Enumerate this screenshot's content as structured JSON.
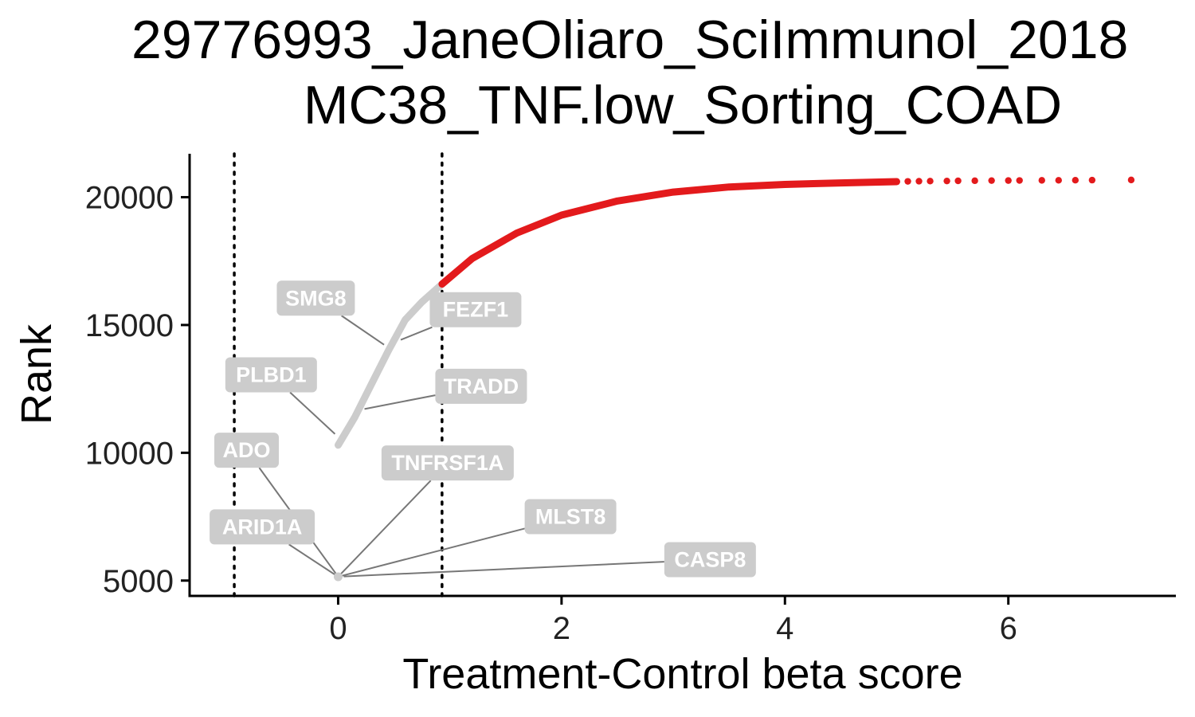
{
  "chart_data": {
    "type": "scatter",
    "title_line1": "29776993_JaneOliaro_SciImmunol_2018",
    "title_line2": "MC38_TNF.low_Sorting_COAD",
    "xlabel": "Treatment-Control beta score",
    "ylabel": "Rank",
    "xlim": [
      -1.33,
      7.5
    ],
    "ylim": [
      4400,
      21700
    ],
    "x_ticks": [
      0,
      2,
      4,
      6
    ],
    "y_ticks": [
      5000,
      10000,
      15000,
      20000
    ],
    "x_tick_labels": [
      "0",
      "2",
      "4",
      "6"
    ],
    "y_tick_labels": [
      "5000",
      "10000",
      "15000",
      "20000"
    ],
    "thresholds": [
      -0.93,
      0.93
    ],
    "grid": false,
    "legend": "none",
    "colors": {
      "neutral_points": "#cccccc",
      "positive_points": "#e31a1c",
      "label_box": "#cccccc",
      "label_text": "#ffffff",
      "connector": "#777777",
      "threshold_line": "#000000"
    },
    "series": [
      {
        "group": "neutral",
        "curve": [
          [
            0.0,
            10300
          ],
          [
            0.15,
            11400
          ],
          [
            0.3,
            12700
          ],
          [
            0.45,
            14000
          ],
          [
            0.6,
            15200
          ],
          [
            0.75,
            15900
          ],
          [
            0.93,
            16600
          ]
        ],
        "cluster": [
          [
            0.0,
            5150
          ]
        ]
      },
      {
        "group": "positive",
        "curve": [
          [
            0.93,
            16600
          ],
          [
            1.2,
            17600
          ],
          [
            1.6,
            18600
          ],
          [
            2.0,
            19300
          ],
          [
            2.5,
            19850
          ],
          [
            3.0,
            20200
          ],
          [
            3.5,
            20400
          ],
          [
            4.0,
            20500
          ],
          [
            4.5,
            20560
          ],
          [
            5.0,
            20610
          ]
        ],
        "outliers": [
          [
            5.1,
            20620
          ],
          [
            5.2,
            20625
          ],
          [
            5.3,
            20630
          ],
          [
            5.45,
            20635
          ],
          [
            5.55,
            20640
          ],
          [
            5.7,
            20645
          ],
          [
            5.85,
            20650
          ],
          [
            6.0,
            20652
          ],
          [
            6.1,
            20655
          ],
          [
            6.3,
            20660
          ],
          [
            6.45,
            20662
          ],
          [
            6.6,
            20665
          ],
          [
            6.75,
            20668
          ],
          [
            7.1,
            20675
          ]
        ]
      }
    ],
    "annotations": [
      {
        "label": "SMG8",
        "x": 0.42,
        "y": 14200,
        "label_x": -0.2,
        "label_y": 16050
      },
      {
        "label": "FEZF1",
        "x": 0.55,
        "y": 14400,
        "label_x": 1.23,
        "label_y": 15600
      },
      {
        "label": "PLBD1",
        "x": -0.02,
        "y": 10700,
        "label_x": -0.6,
        "label_y": 13050
      },
      {
        "label": "TRADD",
        "x": 0.22,
        "y": 11700,
        "label_x": 1.28,
        "label_y": 12600
      },
      {
        "label": "ADO",
        "x": 0.0,
        "y": 5150,
        "label_x": -0.82,
        "label_y": 10100
      },
      {
        "label": "TNFRSF1A",
        "x": 0.0,
        "y": 5150,
        "label_x": 0.98,
        "label_y": 9600
      },
      {
        "label": "ARID1A",
        "x": 0.0,
        "y": 5150,
        "label_x": -0.68,
        "label_y": 7100
      },
      {
        "label": "MLST8",
        "x": 0.0,
        "y": 5150,
        "label_x": 2.08,
        "label_y": 7500
      },
      {
        "label": "CASP8",
        "x": 0.0,
        "y": 5150,
        "label_x": 3.33,
        "label_y": 5820
      }
    ]
  }
}
